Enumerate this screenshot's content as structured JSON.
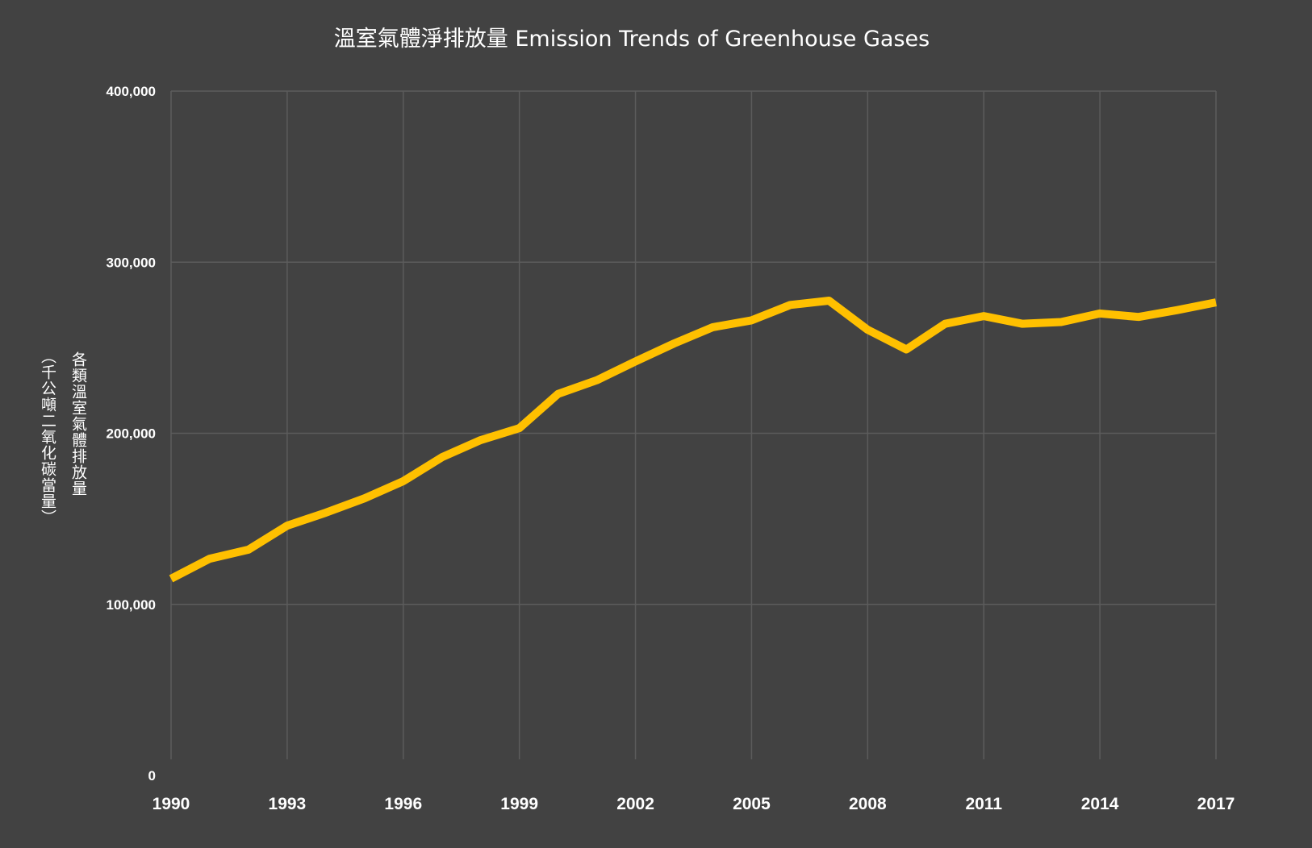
{
  "chart_data": {
    "type": "line",
    "title": "溫室氣體淨排放量 Emission Trends of Greenhouse Gases",
    "ylabel": "各類溫室氣體排放量",
    "ylabel_unit": "（千公噸二氧化碳當量）",
    "xlabel": "",
    "ylim": [
      0,
      400000
    ],
    "yticks": [
      0,
      100000,
      200000,
      300000,
      400000
    ],
    "ytick_labels": [
      "0",
      "100,000",
      "200,000",
      "300,000",
      "400,000"
    ],
    "xticks": [
      1990,
      1993,
      1996,
      1999,
      2002,
      2005,
      2008,
      2011,
      2014,
      2017
    ],
    "grid": true,
    "line_color": "#FFC000",
    "x": [
      1990,
      1991,
      1992,
      1993,
      1994,
      1995,
      1996,
      1997,
      1998,
      1999,
      2000,
      2001,
      2002,
      2003,
      2004,
      2005,
      2006,
      2007,
      2008,
      2009,
      2010,
      2011,
      2012,
      2013,
      2014,
      2015,
      2016,
      2017
    ],
    "values": [
      115000,
      126700,
      132000,
      146000,
      153600,
      162000,
      172000,
      186000,
      196000,
      203000,
      223000,
      231000,
      242000,
      252500,
      262000,
      266000,
      275000,
      277500,
      260500,
      249000,
      264000,
      268500,
      264000,
      265000,
      270000,
      268000,
      272000,
      276500
    ]
  }
}
